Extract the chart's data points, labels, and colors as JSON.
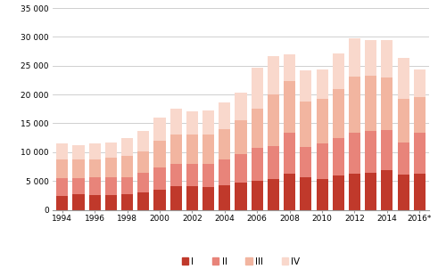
{
  "years": [
    1994,
    1995,
    1996,
    1997,
    1998,
    1999,
    2000,
    2001,
    2002,
    2003,
    2004,
    2005,
    2006,
    2007,
    2008,
    2009,
    2010,
    2011,
    2012,
    2013,
    2014,
    2015,
    2016
  ],
  "Q1": [
    2400,
    2700,
    2600,
    2600,
    2700,
    3000,
    3500,
    4100,
    4100,
    3900,
    4300,
    4700,
    5100,
    5300,
    6300,
    5600,
    5300,
    5900,
    6200,
    6400,
    6900,
    6100,
    6300
  ],
  "Q2": [
    3100,
    2800,
    3000,
    3000,
    3000,
    3400,
    3900,
    3900,
    3900,
    4100,
    4400,
    4900,
    5600,
    5800,
    7000,
    5300,
    6200,
    6600,
    7200,
    7300,
    7000,
    5500,
    7000
  ],
  "Q3": [
    3300,
    3200,
    3200,
    3400,
    3700,
    3800,
    4600,
    5000,
    5100,
    5100,
    5300,
    5900,
    6800,
    8900,
    9100,
    7900,
    7800,
    8400,
    9700,
    9600,
    9000,
    7600,
    6200
  ],
  "Q4": [
    2700,
    2500,
    2700,
    2700,
    3100,
    3500,
    4000,
    4500,
    4000,
    4200,
    4700,
    4900,
    7200,
    6700,
    4600,
    5400,
    5100,
    6200,
    6600,
    6200,
    6500,
    7100,
    4900
  ],
  "colors": [
    "#c0392b",
    "#e8847a",
    "#f2b5a0",
    "#f9d8cc"
  ],
  "ylim": [
    0,
    35000
  ],
  "yticks": [
    0,
    5000,
    10000,
    15000,
    20000,
    25000,
    30000,
    35000
  ],
  "ytick_labels": [
    "0",
    "5 000",
    "10 000",
    "15 000",
    "20 000",
    "25 000",
    "30 000",
    "35 000"
  ],
  "legend_labels": [
    "I",
    "II",
    "III",
    "IV"
  ],
  "background_color": "#ffffff",
  "grid_color": "#c8c8c8"
}
